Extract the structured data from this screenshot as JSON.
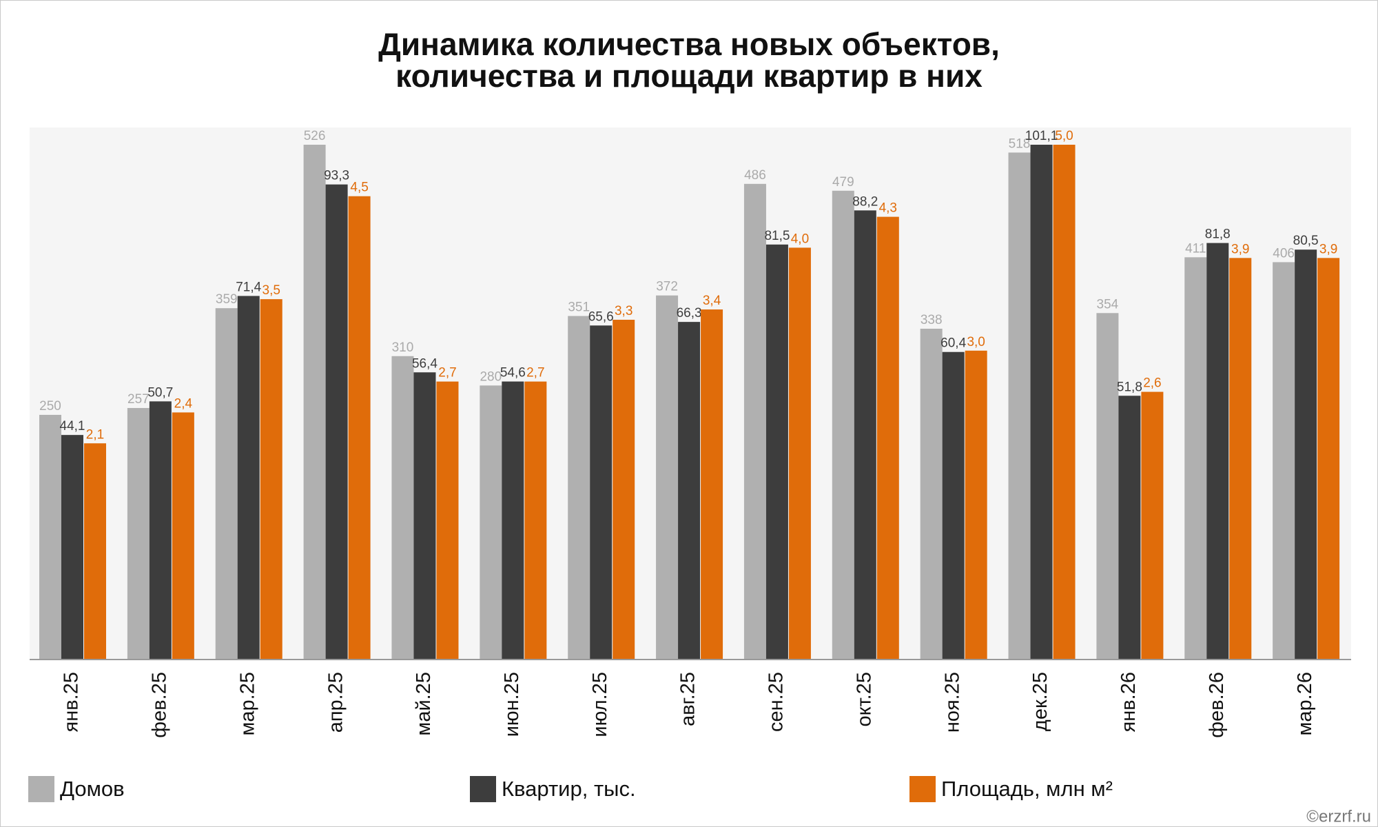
{
  "chart_data": {
    "type": "bar",
    "title": "Динамика количества новых объектов,",
    "subtitle": "количества и площади квартир в них",
    "source": "©erzrf.ru",
    "categories": [
      "янв.25",
      "фев.25",
      "мар.25",
      "апр.25",
      "май.25",
      "июн.25",
      "июл.25",
      "авг.25",
      "сен.25",
      "окт.25",
      "ноя.25",
      "дек.25",
      "янв.26",
      "фев.26",
      "мар.26"
    ],
    "series": [
      {
        "name": "Домов",
        "color": "#b0b0b0",
        "values": [
          250,
          257,
          359,
          526,
          310,
          280,
          351,
          372,
          486,
          479,
          338,
          518,
          354,
          411,
          406
        ]
      },
      {
        "name": "Квартир, тыс.",
        "color": "#3d3d3d",
        "values": [
          44.1,
          50.7,
          71.4,
          93.3,
          56.4,
          54.6,
          65.6,
          66.3,
          81.5,
          88.2,
          60.4,
          101.1,
          51.8,
          81.8,
          80.5
        ],
        "value_labels": [
          "44,1",
          "50,7",
          "71,4",
          "93,3",
          "56,4",
          "54,6",
          "65,6",
          "66,3",
          "81,5",
          "88,2",
          "60,4",
          "101,1",
          "51,8",
          "81,8",
          "80,5"
        ]
      },
      {
        "name": "Площадь, млн м²",
        "color": "#e06c0a",
        "values": [
          2.1,
          2.4,
          3.5,
          4.5,
          2.7,
          2.7,
          3.3,
          3.4,
          4.0,
          4.3,
          3.0,
          5.0,
          2.6,
          3.9,
          3.9
        ],
        "value_labels": [
          "2,1",
          "2,4",
          "3,5",
          "4,5",
          "2,7",
          "2,7",
          "3,3",
          "3,4",
          "4,0",
          "4,3",
          "3,0",
          "5,0",
          "2,6",
          "3,9",
          "3,9"
        ]
      }
    ]
  }
}
